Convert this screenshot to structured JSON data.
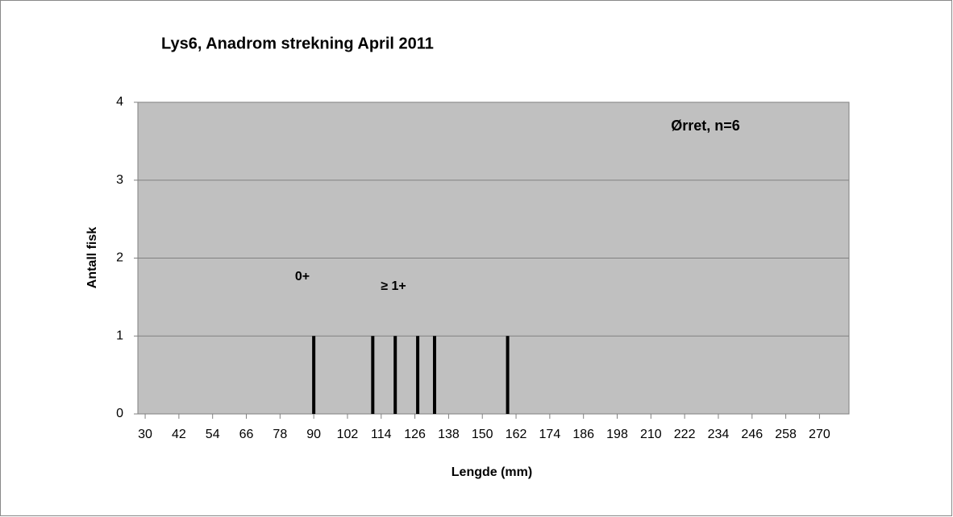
{
  "chart_data": {
    "type": "bar",
    "title": "Lys6, Anadrom strekning April 2011",
    "x_label": "Lengde (mm)",
    "y_label": "Antall fisk",
    "annotations": [
      "0+",
      "≥ 1+",
      "Ørret, n=6"
    ],
    "x": [
      90,
      111,
      119,
      127,
      133,
      159
    ],
    "values": [
      1,
      1,
      1,
      1,
      1,
      1
    ],
    "color": "#000000",
    "xlim": [
      27.4,
      280.5
    ],
    "xticks": [
      30,
      42,
      54,
      66,
      78,
      90,
      102,
      114,
      126,
      138,
      150,
      162,
      174,
      186,
      198,
      210,
      222,
      234,
      246,
      258,
      270
    ],
    "ylim": [
      0,
      4
    ],
    "yticks": [
      0,
      1,
      2,
      3,
      4
    ],
    "grid": true
  }
}
